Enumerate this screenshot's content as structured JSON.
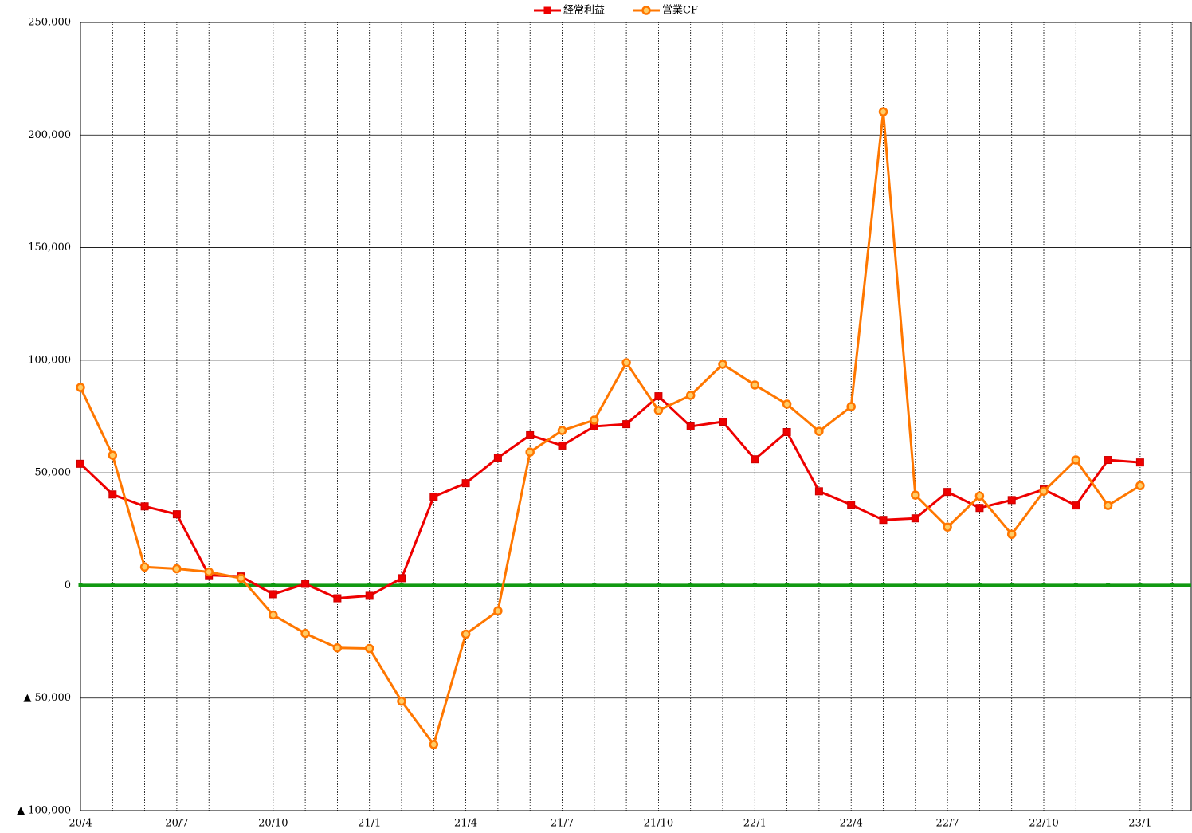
{
  "chart_data": {
    "type": "line",
    "categories": [
      "20/4",
      null,
      null,
      "20/7",
      null,
      null,
      "20/10",
      null,
      null,
      "21/1",
      null,
      null,
      "21/4",
      null,
      null,
      "21/7",
      null,
      null,
      "21/10",
      null,
      null,
      "22/1",
      null,
      null,
      "22/4",
      null,
      null,
      "22/7",
      null,
      null,
      "22/10",
      null,
      null,
      "23/1",
      null
    ],
    "series": [
      {
        "name": "経常利益",
        "color": "#ee0000",
        "marker": "square",
        "values": [
          54000,
          40400,
          35100,
          31600,
          4500,
          4000,
          -3900,
          700,
          -5700,
          -4600,
          3200,
          39400,
          45400,
          56700,
          66700,
          62100,
          70600,
          71600,
          84000,
          70600,
          72700,
          56000,
          68100,
          41800,
          35800,
          29100,
          29800,
          41500,
          34400,
          37900,
          42600,
          35500,
          55700,
          54600,
          null
        ]
      },
      {
        "name": "営業CF",
        "color": "#ff7700",
        "marker": "circle",
        "values": [
          87900,
          57800,
          8200,
          7400,
          6000,
          3200,
          -13100,
          -21300,
          -27700,
          -28000,
          -51400,
          -70600,
          -21600,
          -11300,
          59200,
          68800,
          73400,
          98900,
          77700,
          84400,
          98200,
          89000,
          80500,
          68400,
          79400,
          210300,
          40100,
          25900,
          39700,
          22700,
          41800,
          55700,
          35500,
          44300,
          null
        ]
      }
    ],
    "ylim": [
      -100000,
      250000
    ],
    "yticks": [
      {
        "value": -100000,
        "label": "▲ 100,000"
      },
      {
        "value": -50000,
        "label": "▲ 50,000"
      },
      0,
      {
        "value": 50000,
        "label": "50,000"
      },
      {
        "value": 100000,
        "label": "100,000"
      },
      {
        "value": 150000,
        "label": "150,000"
      },
      {
        "value": 200000,
        "label": "200,000"
      },
      {
        "value": 250000,
        "label": "250,000"
      }
    ],
    "grid": true,
    "baseline": {
      "value": 0,
      "color": "#119911"
    },
    "legend": "top"
  }
}
